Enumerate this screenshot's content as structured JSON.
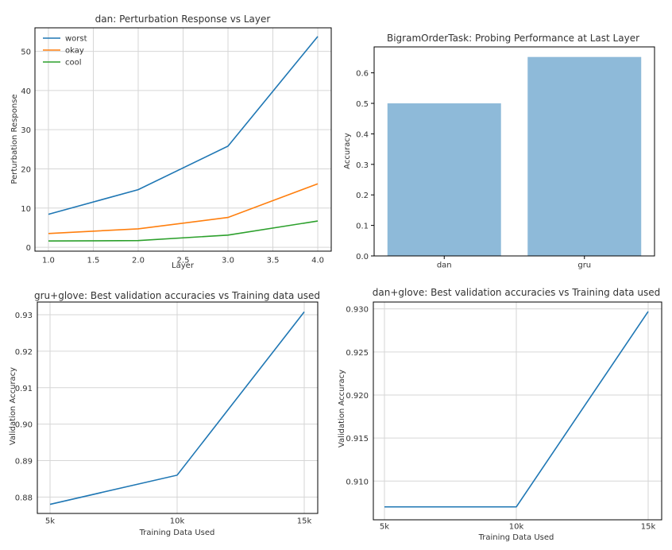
{
  "chart_data": [
    {
      "type": "line",
      "title": "dan: Perturbation Response vs Layer",
      "xlabel": "Layer",
      "ylabel": "Perturbation Response",
      "xlim": [
        0.85,
        4.15
      ],
      "ylim": [
        -1,
        56
      ],
      "xticks": [
        1.0,
        1.5,
        2.0,
        2.5,
        3.0,
        3.5,
        4.0
      ],
      "xtick_labels": [
        "1.0",
        "1.5",
        "2.0",
        "2.5",
        "3.0",
        "3.5",
        "4.0"
      ],
      "yticks": [
        0,
        10,
        20,
        30,
        40,
        50
      ],
      "ytick_labels": [
        "0",
        "10",
        "20",
        "30",
        "40",
        "50"
      ],
      "grid": true,
      "legend": "top-left",
      "x": [
        1,
        2,
        3,
        4
      ],
      "series": [
        {
          "name": "worst",
          "color": "#1f77b4",
          "values": [
            8.4,
            14.7,
            25.8,
            53.8
          ]
        },
        {
          "name": "okay",
          "color": "#ff7f0e",
          "values": [
            3.5,
            4.7,
            7.6,
            16.2
          ]
        },
        {
          "name": "cool",
          "color": "#2ca02c",
          "values": [
            1.6,
            1.7,
            3.1,
            6.7
          ]
        }
      ]
    },
    {
      "type": "bar",
      "title": "BigramOrderTask: Probing Performance at Last Layer",
      "xlabel": "",
      "ylabel": "Accuracy",
      "categories": [
        "dan",
        "gru"
      ],
      "values": [
        0.5,
        0.652
      ],
      "ylim": [
        0,
        0.685
      ],
      "yticks": [
        0.0,
        0.1,
        0.2,
        0.3,
        0.4,
        0.5,
        0.6
      ],
      "ytick_labels": [
        "0.0",
        "0.1",
        "0.2",
        "0.3",
        "0.4",
        "0.5",
        "0.6"
      ],
      "bar_color": "#8ebad9",
      "grid": false
    },
    {
      "type": "line",
      "title": "gru+glove: Best validation accuracies vs Training data used",
      "xlabel": "Training Data Used",
      "ylabel": "Validation Accuracy",
      "categories": [
        "5k",
        "10k",
        "15k"
      ],
      "ylim": [
        0.8755,
        0.9335
      ],
      "yticks": [
        0.88,
        0.89,
        0.9,
        0.91,
        0.92,
        0.93
      ],
      "ytick_labels": [
        "0.88",
        "0.89",
        "0.90",
        "0.91",
        "0.92",
        "0.93"
      ],
      "grid": true,
      "series": [
        {
          "color": "#1f77b4",
          "values": [
            0.878,
            0.886,
            0.9308
          ]
        }
      ]
    },
    {
      "type": "line",
      "title": "dan+glove: Best validation accuracies vs Training data used",
      "xlabel": "Training Data Used",
      "ylabel": "Validation Accuracy",
      "categories": [
        "5k",
        "10k",
        "15k"
      ],
      "ylim": [
        0.9055,
        0.9308
      ],
      "yticks": [
        0.91,
        0.915,
        0.92,
        0.925,
        0.93
      ],
      "ytick_labels": [
        "0.910",
        "0.915",
        "0.920",
        "0.925",
        "0.930"
      ],
      "grid": true,
      "series": [
        {
          "color": "#1f77b4",
          "values": [
            0.907,
            0.907,
            0.9297
          ]
        }
      ]
    }
  ]
}
